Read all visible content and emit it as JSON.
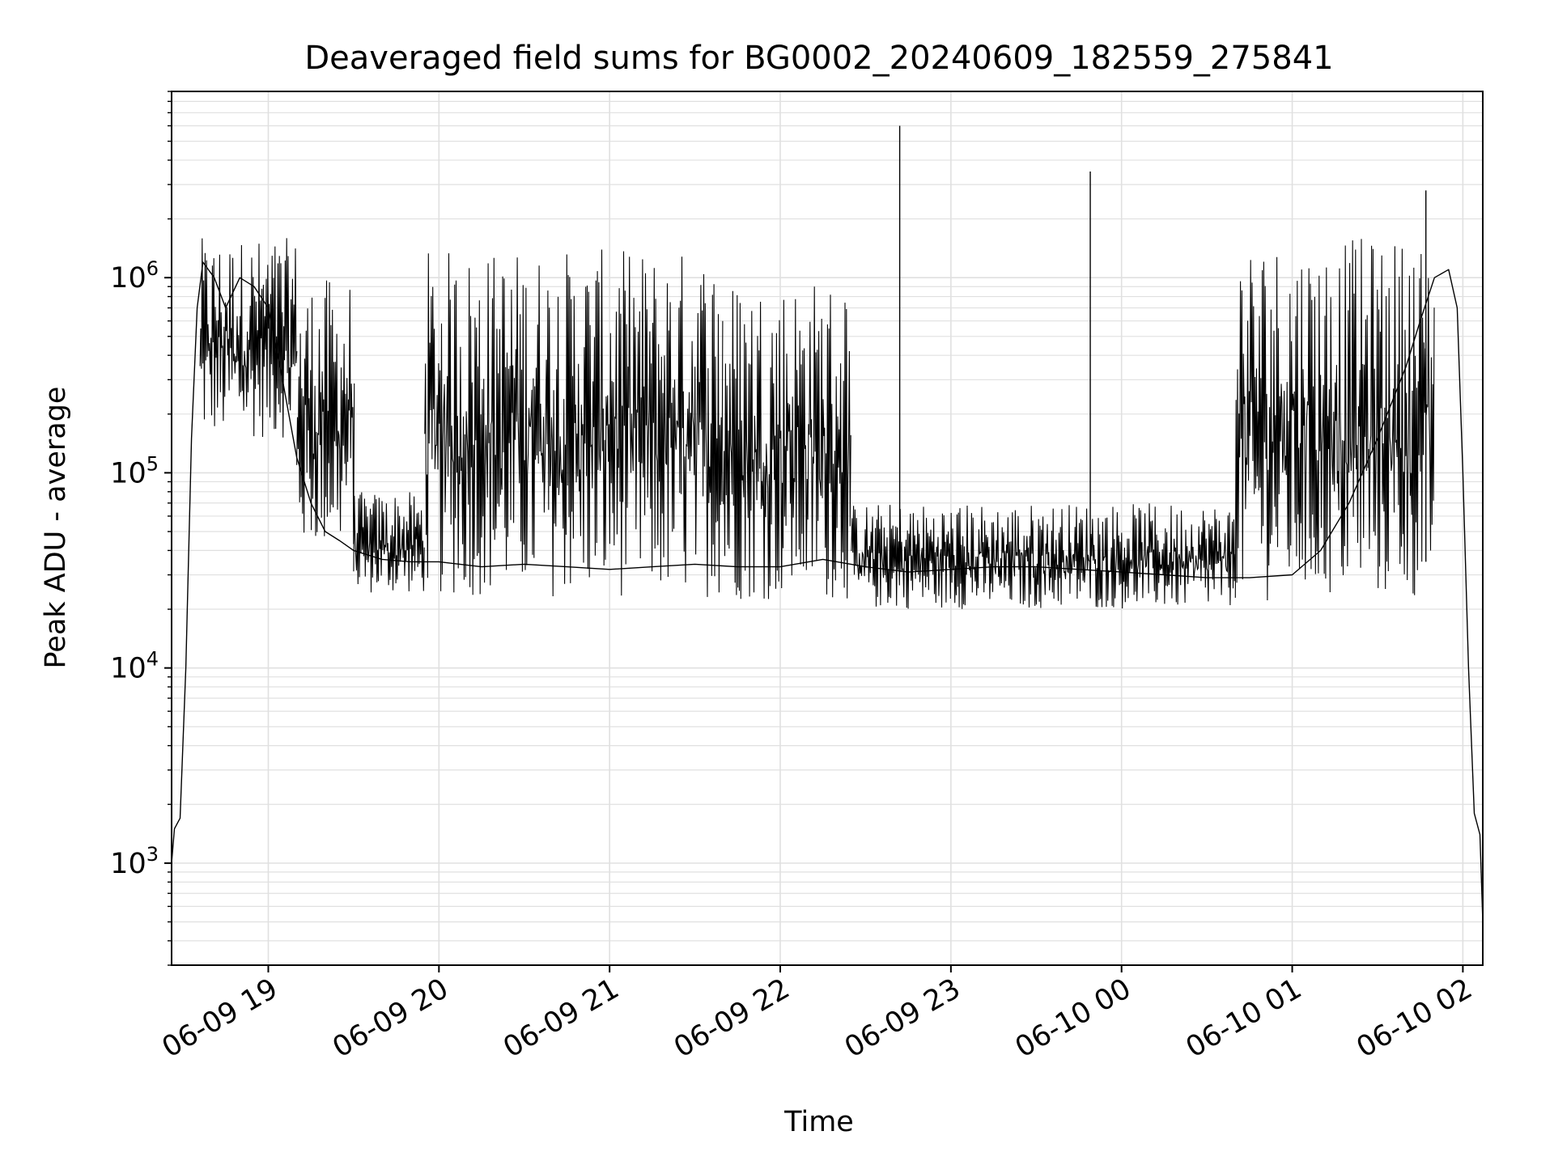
{
  "chart_data": {
    "type": "line",
    "title": "Deaveraged field sums for BG0002_20240609_182559_275841",
    "xlabel": "Time",
    "ylabel": "Peak ADU - average",
    "y_scale": "log",
    "ylim": [
      300,
      9000000
    ],
    "xlim": [
      "2024-06-09 18:26",
      "2024-06-10 02:07"
    ],
    "x_ticks": [
      "06-09 19",
      "06-09 20",
      "06-09 21",
      "06-09 22",
      "06-09 23",
      "06-10 00",
      "06-10 01",
      "06-10 02"
    ],
    "y_ticks": [
      {
        "base": "10",
        "exp": "3",
        "value": 1000
      },
      {
        "base": "10",
        "exp": "4",
        "value": 10000
      },
      {
        "base": "10",
        "exp": "5",
        "value": 100000
      },
      {
        "base": "10",
        "exp": "6",
        "value": 1000000
      }
    ],
    "grid": true,
    "legend": "none",
    "line_color": "#000000",
    "grid_color": "#e0e0e0",
    "series": [
      {
        "x": [
          "2024-06-09 18:26",
          "2024-06-09 18:27",
          "2024-06-09 18:29",
          "2024-06-09 18:31",
          "2024-06-09 18:33",
          "2024-06-09 18:35",
          "2024-06-09 18:37",
          "2024-06-09 18:41",
          "2024-06-09 18:45",
          "2024-06-09 18:50",
          "2024-06-09 18:55",
          "2024-06-09 19:00",
          "2024-06-09 19:05",
          "2024-06-09 19:10",
          "2024-06-09 19:15",
          "2024-06-09 19:20",
          "2024-06-09 19:25",
          "2024-06-09 19:30",
          "2024-06-09 19:40",
          "2024-06-09 19:50",
          "2024-06-09 20:00",
          "2024-06-09 20:15",
          "2024-06-09 20:30",
          "2024-06-09 20:45",
          "2024-06-09 21:00",
          "2024-06-09 21:15",
          "2024-06-09 21:30",
          "2024-06-09 21:45",
          "2024-06-09 22:00",
          "2024-06-09 22:15",
          "2024-06-09 22:30",
          "2024-06-09 22:45",
          "2024-06-09 23:00",
          "2024-06-09 23:15",
          "2024-06-09 23:30",
          "2024-06-09 23:45",
          "2024-06-10 00:00",
          "2024-06-10 00:15",
          "2024-06-10 00:30",
          "2024-06-10 00:45",
          "2024-06-10 01:00",
          "2024-06-10 01:10",
          "2024-06-10 01:20",
          "2024-06-10 01:30",
          "2024-06-10 01:40",
          "2024-06-10 01:45",
          "2024-06-10 01:50",
          "2024-06-10 01:55",
          "2024-06-10 01:58",
          "2024-06-10 02:00",
          "2024-06-10 02:02",
          "2024-06-10 02:04",
          "2024-06-10 02:06",
          "2024-06-10 02:07"
        ],
        "y": [
          1000,
          1500,
          1700,
          10000,
          150000,
          700000,
          1200000,
          1000000,
          700000,
          1000000,
          900000,
          700000,
          300000,
          120000,
          70000,
          50000,
          45000,
          40000,
          36000,
          35000,
          35000,
          33000,
          34000,
          33000,
          32000,
          33000,
          34000,
          33000,
          33000,
          36000,
          33000,
          31000,
          32000,
          33000,
          33000,
          32000,
          31000,
          30000,
          29000,
          29000,
          30000,
          40000,
          70000,
          150000,
          350000,
          600000,
          1000000,
          1100000,
          700000,
          100000,
          10000,
          1800,
          1400,
          500
        ]
      }
    ],
    "spikes": [
      {
        "x": "2024-06-09 22:42",
        "y": 6000000
      },
      {
        "x": "2024-06-09 23:49",
        "y": 3500000
      },
      {
        "x": "2024-06-10 01:47",
        "y": 2800000
      }
    ],
    "variation_bands": [
      {
        "from": "2024-06-09 18:36",
        "to": "2024-06-09 19:10",
        "low": 150000,
        "high": 1600000
      },
      {
        "from": "2024-06-09 19:10",
        "to": "2024-06-09 19:30",
        "low": 40000,
        "high": 1000000
      },
      {
        "from": "2024-06-09 19:30",
        "to": "2024-06-09 19:55",
        "low": 24000,
        "high": 80000
      },
      {
        "from": "2024-06-09 19:55",
        "to": "2024-06-09 21:40",
        "low": 23000,
        "high": 1400000
      },
      {
        "from": "2024-06-09 21:40",
        "to": "2024-06-09 22:25",
        "low": 22000,
        "high": 1000000
      },
      {
        "from": "2024-06-09 22:25",
        "to": "2024-06-10 00:40",
        "low": 20000,
        "high": 70000
      },
      {
        "from": "2024-06-10 00:40",
        "to": "2024-06-10 01:50",
        "low": 22000,
        "high": 1600000
      }
    ]
  }
}
